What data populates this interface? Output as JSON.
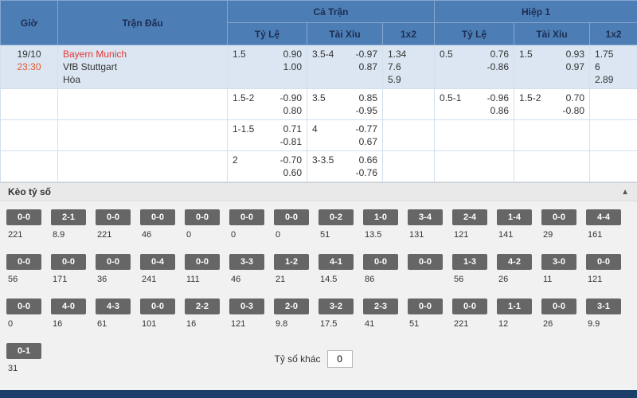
{
  "colors": {
    "header_blue": "#4d7db5",
    "row_highlight": "#dbe6f2",
    "team_red": "#e53535",
    "time_orange": "#e4582b",
    "chip_gray": "#666666",
    "bottom_navy": "#1c3e6b"
  },
  "table": {
    "headers": {
      "time": "Giờ",
      "match": "Trận Đấu",
      "full_match": "Cả Trận",
      "first_half": "Hiệp 1",
      "handicap": "Tỷ Lệ",
      "over_under": "Tài Xỉu",
      "one_x_two": "1x2"
    }
  },
  "match": {
    "date": "19/10",
    "time": "23:30",
    "home": "Bayern Munich",
    "away": "VfB Stuttgart",
    "draw": "Hòa"
  },
  "odds_rows": [
    {
      "ft_hdp": {
        "line": "1.5",
        "odds": [
          "0.90",
          "1.00"
        ]
      },
      "ft_ou": {
        "line": "3.5-4",
        "odds": [
          "-0.97",
          "0.87"
        ]
      },
      "ft_1x2": [
        "1.34",
        "7.6",
        "5.9"
      ],
      "h1_hdp": {
        "line": "0.5",
        "odds": [
          "0.76",
          "-0.86"
        ]
      },
      "h1_ou": {
        "line": "1.5",
        "odds": [
          "0.93",
          "0.97"
        ]
      },
      "h1_1x2": [
        "1.75",
        "6",
        "2.89"
      ]
    },
    {
      "ft_hdp": {
        "line": "1.5-2",
        "odds": [
          "-0.90",
          "0.80"
        ]
      },
      "ft_ou": {
        "line": "3.5",
        "odds": [
          "0.85",
          "-0.95"
        ]
      },
      "h1_hdp": {
        "line": "0.5-1",
        "odds": [
          "-0.96",
          "0.86"
        ]
      },
      "h1_ou": {
        "line": "1.5-2",
        "odds": [
          "0.70",
          "-0.80"
        ]
      }
    },
    {
      "ft_hdp": {
        "line": "1-1.5",
        "odds": [
          "0.71",
          "-0.81"
        ]
      },
      "ft_ou": {
        "line": "4",
        "odds": [
          "-0.77",
          "0.67"
        ]
      }
    },
    {
      "ft_hdp": {
        "line": "2",
        "odds": [
          "-0.70",
          "0.60"
        ]
      },
      "ft_ou": {
        "line": "3-3.5",
        "odds": [
          "0.66",
          "-0.76"
        ]
      }
    }
  ],
  "correct_score": {
    "title": "Kèo tỷ số",
    "collapse_icon": "▲",
    "rows": [
      [
        {
          "score": "0-0",
          "odds": "221"
        },
        {
          "score": "2-1",
          "odds": "8.9"
        },
        {
          "score": "0-0",
          "odds": "221"
        },
        {
          "score": "0-0",
          "odds": "46"
        },
        {
          "score": "0-0",
          "odds": "0"
        },
        {
          "score": "0-0",
          "odds": "0"
        },
        {
          "score": "0-0",
          "odds": "0"
        },
        {
          "score": "0-2",
          "odds": "51"
        },
        {
          "score": "1-0",
          "odds": "13.5"
        },
        {
          "score": "3-4",
          "odds": "131"
        },
        {
          "score": "2-4",
          "odds": "121"
        },
        {
          "score": "1-4",
          "odds": "141"
        },
        {
          "score": "0-0",
          "odds": "29"
        },
        {
          "score": "4-4",
          "odds": "161"
        }
      ],
      [
        {
          "score": "0-0",
          "odds": "56"
        },
        {
          "score": "0-0",
          "odds": "171"
        },
        {
          "score": "0-0",
          "odds": "36"
        },
        {
          "score": "0-4",
          "odds": "241"
        },
        {
          "score": "0-0",
          "odds": "111"
        },
        {
          "score": "3-3",
          "odds": "46"
        },
        {
          "score": "1-2",
          "odds": "21"
        },
        {
          "score": "4-1",
          "odds": "14.5"
        },
        {
          "score": "0-0",
          "odds": "86"
        },
        {
          "score": "0-0",
          "odds": ""
        },
        {
          "score": "1-3",
          "odds": "56"
        },
        {
          "score": "4-2",
          "odds": "26"
        },
        {
          "score": "3-0",
          "odds": "11"
        },
        {
          "score": "0-0",
          "odds": "121"
        }
      ],
      [
        {
          "score": "0-0",
          "odds": "0"
        },
        {
          "score": "4-0",
          "odds": "16"
        },
        {
          "score": "4-3",
          "odds": "61"
        },
        {
          "score": "0-0",
          "odds": "101"
        },
        {
          "score": "2-2",
          "odds": "16"
        },
        {
          "score": "0-3",
          "odds": "121"
        },
        {
          "score": "2-0",
          "odds": "9.8"
        },
        {
          "score": "3-2",
          "odds": "17.5"
        },
        {
          "score": "2-3",
          "odds": "41"
        },
        {
          "score": "0-0",
          "odds": "51"
        },
        {
          "score": "0-0",
          "odds": "221"
        },
        {
          "score": "1-1",
          "odds": "12"
        },
        {
          "score": "0-0",
          "odds": "26"
        },
        {
          "score": "3-1",
          "odds": "9.9"
        }
      ]
    ],
    "last_row": {
      "score": "0-1",
      "odds": "31"
    },
    "other_score_label": "Tỷ số khác",
    "other_score_value": "0"
  }
}
